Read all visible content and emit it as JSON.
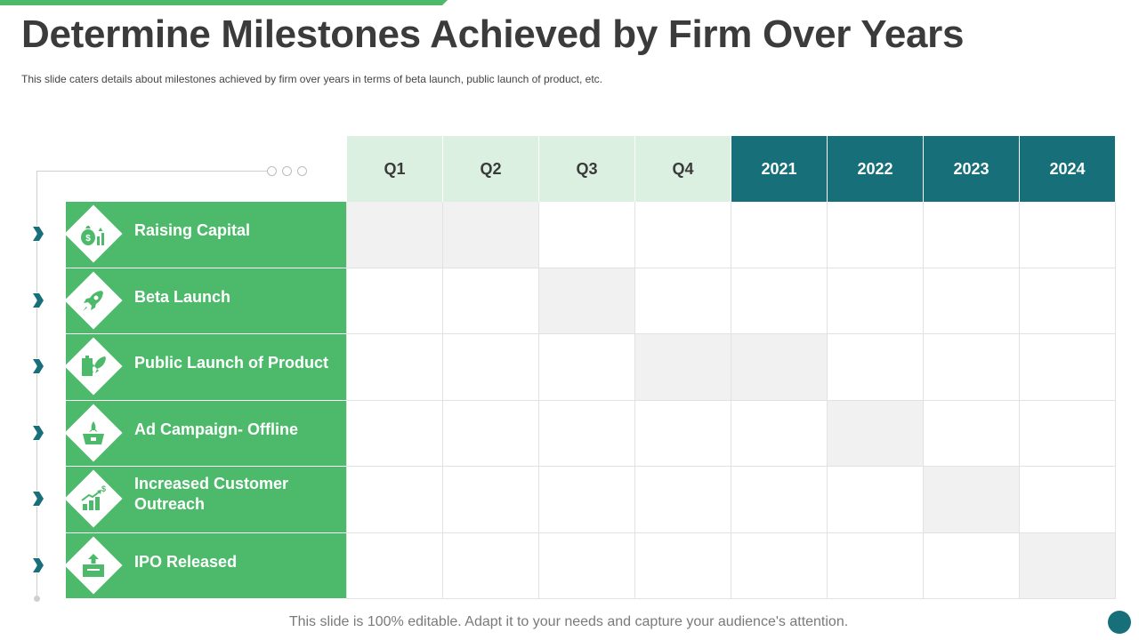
{
  "slide": {
    "title": "Determine Milestones Achieved by Firm Over Years",
    "subtitle": "This slide caters details about milestones achieved  by firm over years in terms of beta launch, public launch of product, etc.",
    "footer": "This slide is 100% editable. Adapt it to your needs and capture your audience's attention."
  },
  "colors": {
    "accent_green": "#4cb96b",
    "light_green": "#dcf0e1",
    "teal": "#177079",
    "filled_cell": "#f1f1f1"
  },
  "columns": [
    "Q1",
    "Q2",
    "Q3",
    "Q4",
    "2021",
    "2022",
    "2023",
    "2024"
  ],
  "milestones": [
    {
      "label": "Raising Capital",
      "icon": "money-bag-icon",
      "active": [
        "Q1",
        "Q2"
      ]
    },
    {
      "label": "Beta Launch",
      "icon": "rocket-icon",
      "active": [
        "Q3"
      ]
    },
    {
      "label": "Public Launch of Product",
      "icon": "product-launch-icon",
      "active": [
        "Q4",
        "2021"
      ]
    },
    {
      "label": "Ad Campaign- Offline",
      "icon": "campaign-box-icon",
      "active": [
        "2022"
      ]
    },
    {
      "label": "Increased Customer\nOutreach",
      "icon": "growth-chart-icon",
      "active": [
        "2023"
      ]
    },
    {
      "label": "IPO Released",
      "icon": "upload-box-icon",
      "active": [
        "2024"
      ]
    }
  ]
}
